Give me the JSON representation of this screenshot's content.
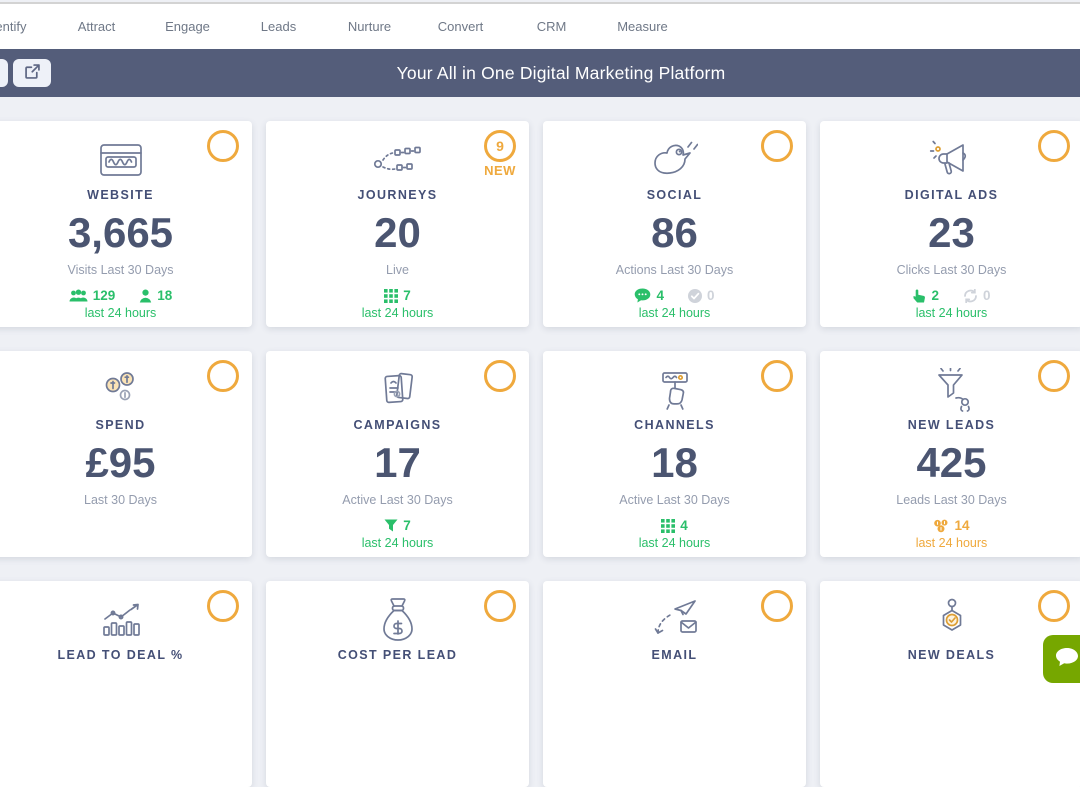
{
  "nav": {
    "items": [
      "Identify",
      "Attract",
      "Engage",
      "Leads",
      "Nurture",
      "Convert",
      "CRM",
      "Measure"
    ]
  },
  "header": {
    "title": "Your All in One Digital Marketing Platform",
    "background_color": "#545d7a",
    "open_button_icon": "external-link-icon"
  },
  "colors": {
    "accent_green": "#2abf6a",
    "accent_orange": "#efa93d",
    "value_text": "#4b5571",
    "page_background": "#eef0f5",
    "chat_widget_green": "#76a700"
  },
  "cards": [
    {
      "title": "WEBSITE",
      "icon": "browser-icon",
      "value": "3,665",
      "subtitle": "Visits Last 30 Days",
      "footer": {
        "stats": [
          {
            "icon": "users-icon",
            "value": "129",
            "tone": "green"
          },
          {
            "icon": "user-icon",
            "value": "18",
            "tone": "green"
          }
        ],
        "label": "last 24 hours",
        "tone": "green"
      }
    },
    {
      "title": "JOURNEYS",
      "icon": "journey-icon",
      "value": "20",
      "subtitle": "Live",
      "badge": {
        "count": "9",
        "label": "NEW"
      },
      "footer": {
        "stats": [
          {
            "icon": "grid-icon",
            "value": "7",
            "tone": "green"
          }
        ],
        "label": "last 24 hours",
        "tone": "green"
      }
    },
    {
      "title": "SOCIAL",
      "icon": "bird-icon",
      "value": "86",
      "subtitle": "Actions Last 30 Days",
      "footer": {
        "stats": [
          {
            "icon": "chat-icon",
            "value": "4",
            "tone": "green"
          },
          {
            "icon": "check-circle-icon",
            "value": "0",
            "tone": "muted"
          }
        ],
        "label": "last 24 hours",
        "tone": "green"
      }
    },
    {
      "title": "DIGITAL ADS",
      "icon": "megaphone-icon",
      "value": "23",
      "subtitle": "Clicks Last 30 Days",
      "footer": {
        "stats": [
          {
            "icon": "pointer-icon",
            "value": "2",
            "tone": "green"
          },
          {
            "icon": "refresh-icon",
            "value": "0",
            "tone": "muted"
          }
        ],
        "label": "last 24 hours",
        "tone": "green"
      }
    },
    {
      "title": "SPEND",
      "icon": "coins-icon",
      "value": "£95",
      "subtitle": "Last 30 Days"
    },
    {
      "title": "CAMPAIGNS",
      "icon": "flyers-icon",
      "value": "17",
      "subtitle": "Active Last 30 Days",
      "footer": {
        "stats": [
          {
            "icon": "filter-icon",
            "value": "7",
            "tone": "green"
          }
        ],
        "label": "last 24 hours",
        "tone": "green"
      }
    },
    {
      "title": "CHANNELS",
      "icon": "hand-sign-icon",
      "value": "18",
      "subtitle": "Active Last 30 Days",
      "footer": {
        "stats": [
          {
            "icon": "grid-icon",
            "value": "4",
            "tone": "green"
          }
        ],
        "label": "last 24 hours",
        "tone": "green"
      }
    },
    {
      "title": "NEW LEADS",
      "icon": "funnel-doodle-icon",
      "value": "425",
      "subtitle": "Leads Last 30 Days",
      "footer": {
        "stats": [
          {
            "icon": "leads-coins-icon",
            "value": "14",
            "tone": "orange"
          }
        ],
        "label": "last 24 hours",
        "tone": "orange"
      }
    },
    {
      "title": "LEAD TO DEAL %",
      "icon": "chart-growth-icon"
    },
    {
      "title": "COST PER LEAD",
      "icon": "money-bag-icon"
    },
    {
      "title": "EMAIL",
      "icon": "email-send-icon"
    },
    {
      "title": "NEW DEALS",
      "icon": "deal-tag-icon"
    }
  ],
  "chat_widget": {
    "icon": "chat-bubble-icon"
  }
}
